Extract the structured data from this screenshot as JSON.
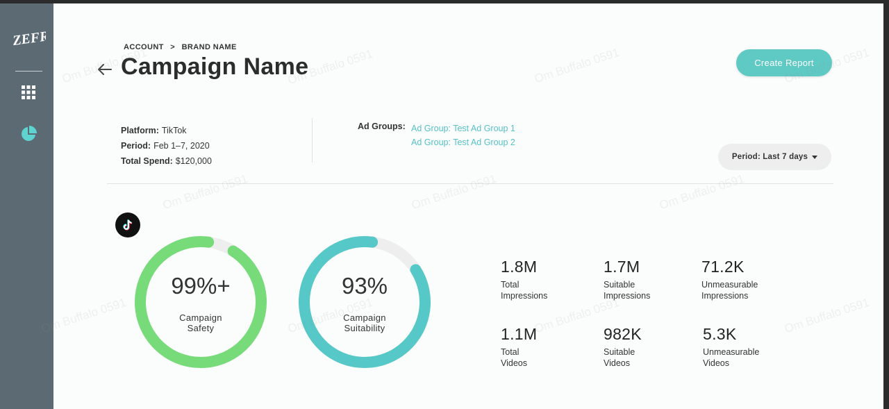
{
  "sidebar": {
    "logo_text": "ZEFR",
    "items": [
      {
        "icon": "grid-icon",
        "label": "Apps"
      },
      {
        "icon": "pie-chart-icon",
        "label": "Reports"
      }
    ]
  },
  "breadcrumb": {
    "account": "ACCOUNT",
    "separator": ">",
    "brand": "BRAND NAME"
  },
  "page_title": "Campaign Name",
  "create_report_label": "Create Report",
  "info": {
    "platform_label": "Platform:",
    "platform_value": "TikTok",
    "period_label": "Period:",
    "period_value": "Feb 1–7, 2020",
    "spend_label": "Total Spend:",
    "spend_value": "$120,000"
  },
  "ad_groups": {
    "label": "Ad Groups:",
    "items": [
      "Ad Group: Test Ad Group 1",
      "Ad Group: Test Ad Group 2"
    ]
  },
  "period_selector": {
    "label": "Period: Last 7 days"
  },
  "gauges": [
    {
      "value_text": "99%+",
      "label_line1": "Campaign",
      "label_line2": "Safety",
      "fraction": 0.93,
      "color": "#78db7a"
    },
    {
      "value_text": "93%",
      "label_line1": "Campaign",
      "label_line2": "Suitability",
      "fraction": 0.86,
      "color": "#56c8c7"
    }
  ],
  "stats": [
    {
      "value": "1.8M",
      "line1": "Total",
      "line2": "Impressions"
    },
    {
      "value": "1.7M",
      "line1": "Suitable",
      "line2": "Impressions"
    },
    {
      "value": "71.2K",
      "line1": "Unmeasurable",
      "line2": "Impressions"
    },
    {
      "value": "1.1M",
      "line1": "Total",
      "line2": "Videos"
    },
    {
      "value": "982K",
      "line1": "Suitable",
      "line2": "Videos"
    },
    {
      "value": "5.3K",
      "line1": "Unmeasurable",
      "line2": "Videos"
    }
  ],
  "watermark_text": "Om Buffalo 0591",
  "colors": {
    "sidebar": "#5c6a74",
    "accent": "#5fc9c4",
    "safety": "#78db7a",
    "suitability": "#56c8c7",
    "track": "#eeeeee"
  }
}
